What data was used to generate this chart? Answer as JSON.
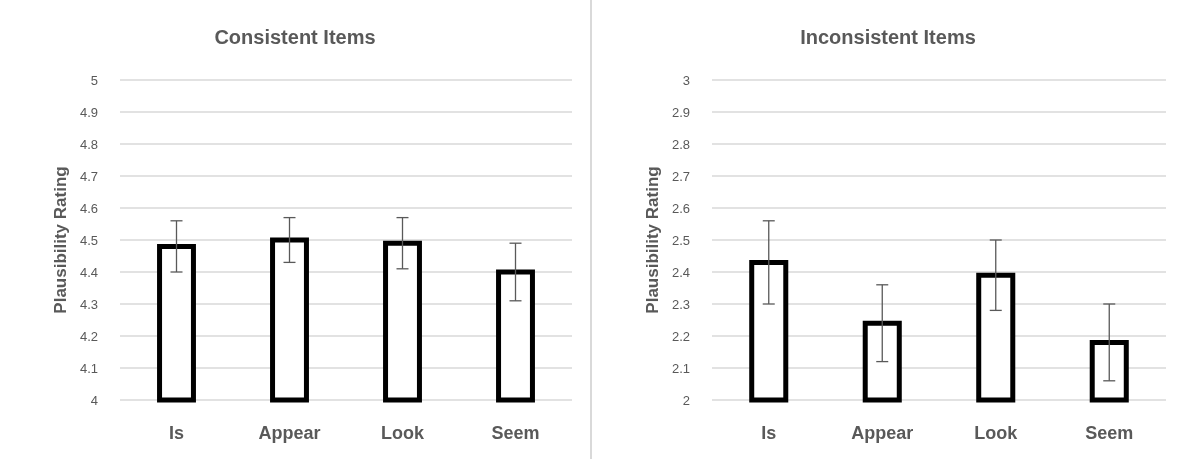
{
  "chart_data": [
    {
      "type": "bar",
      "title": "Consistent Items",
      "ylabel": "Plausibility Rating",
      "categories": [
        "Is",
        "Appear",
        "Look",
        "Seem"
      ],
      "series": [
        {
          "color": "#ffffff",
          "values": [
            4.48,
            4.5,
            4.49,
            4.4
          ],
          "errors": [
            0.08,
            0.07,
            0.08,
            0.09
          ]
        }
      ],
      "ylim": [
        4,
        5
      ],
      "yticks": [
        4,
        4.1,
        4.2,
        4.3,
        4.4,
        4.5,
        4.6,
        4.7,
        4.8,
        4.9,
        5
      ],
      "grid": "y"
    },
    {
      "type": "bar",
      "title": "Inconsistent Items",
      "ylabel": "Plausibility Rating",
      "categories": [
        "Is",
        "Appear",
        "Look",
        "Seem"
      ],
      "series": [
        {
          "color": "#ffffff",
          "values": [
            2.43,
            2.24,
            2.39,
            2.18
          ],
          "errors": [
            0.13,
            0.12,
            0.11,
            0.12
          ]
        }
      ],
      "ylim": [
        2,
        3
      ],
      "yticks": [
        2,
        2.1,
        2.2,
        2.3,
        2.4,
        2.5,
        2.6,
        2.7,
        2.8,
        2.9,
        3
      ],
      "grid": "y"
    }
  ]
}
